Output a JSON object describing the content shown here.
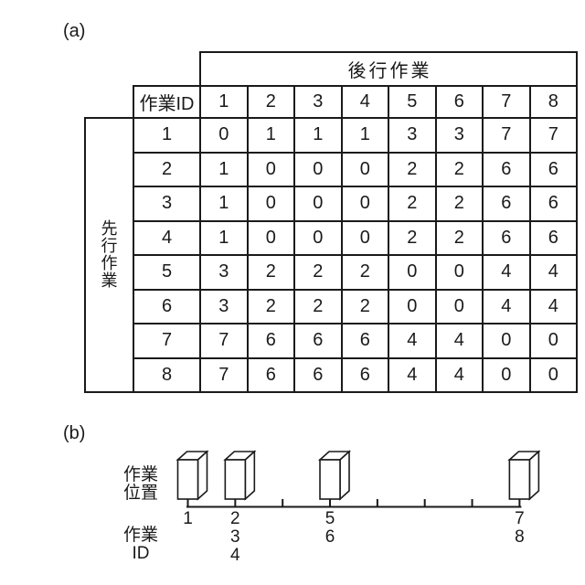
{
  "figure_a": {
    "label": "(a)",
    "table": {
      "col_group_header": "後行作業",
      "corner_header": "作業ID",
      "row_group_header": "先行作業",
      "col_headers": [
        "1",
        "2",
        "3",
        "4",
        "5",
        "6",
        "7",
        "8"
      ],
      "rows": [
        {
          "id": "1",
          "values": [
            "0",
            "1",
            "1",
            "1",
            "3",
            "3",
            "7",
            "7"
          ]
        },
        {
          "id": "2",
          "values": [
            "1",
            "0",
            "0",
            "0",
            "2",
            "2",
            "6",
            "6"
          ]
        },
        {
          "id": "3",
          "values": [
            "1",
            "0",
            "0",
            "0",
            "2",
            "2",
            "6",
            "6"
          ]
        },
        {
          "id": "4",
          "values": [
            "1",
            "0",
            "0",
            "0",
            "2",
            "2",
            "6",
            "6"
          ]
        },
        {
          "id": "5",
          "values": [
            "3",
            "2",
            "2",
            "2",
            "0",
            "0",
            "4",
            "4"
          ]
        },
        {
          "id": "6",
          "values": [
            "3",
            "2",
            "2",
            "2",
            "0",
            "0",
            "4",
            "4"
          ]
        },
        {
          "id": "7",
          "values": [
            "7",
            "6",
            "6",
            "6",
            "4",
            "4",
            "0",
            "0"
          ]
        },
        {
          "id": "8",
          "values": [
            "7",
            "6",
            "6",
            "6",
            "4",
            "4",
            "0",
            "0"
          ]
        }
      ]
    }
  },
  "figure_b": {
    "label": "(b)",
    "work_position_label_lines": [
      "作業",
      "位置"
    ],
    "work_id_label_lines": [
      "作業",
      "ID"
    ],
    "axis": {
      "tick_count": 8
    },
    "stations": [
      {
        "tick_index": 0,
        "position_label": "1",
        "work_ids": []
      },
      {
        "tick_index": 1,
        "position_label": "2",
        "work_ids": [
          "3",
          "4"
        ]
      },
      {
        "tick_index": 3,
        "position_label": "5",
        "work_ids": [
          "6"
        ]
      },
      {
        "tick_index": 7,
        "position_label": "7",
        "work_ids": [
          "8"
        ]
      }
    ]
  },
  "colors": {
    "ink": "#1a1a1a",
    "paper": "#ffffff"
  }
}
